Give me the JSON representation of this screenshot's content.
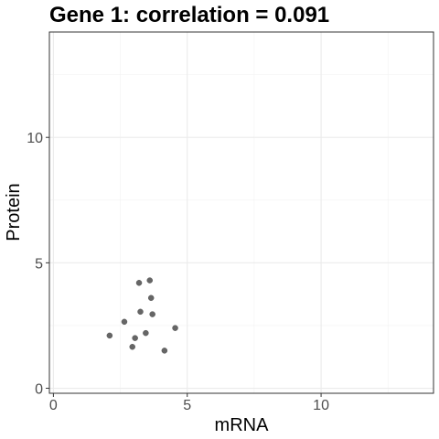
{
  "chart_data": {
    "type": "scatter",
    "title": "Gene 1: correlation = 0.091",
    "xlabel": "mRNA",
    "ylabel": "Protein",
    "xlim": [
      -0.15,
      14.2
    ],
    "ylim": [
      -0.2,
      14.2
    ],
    "x_ticks": [
      0,
      5,
      10
    ],
    "x_tick_labels": [
      "0",
      "5",
      "10"
    ],
    "y_ticks": [
      0,
      5,
      10
    ],
    "y_tick_labels": [
      "0",
      "5",
      "10"
    ],
    "x_minor_ticks": [
      2.5,
      7.5,
      12.5
    ],
    "y_minor_ticks": [
      2.5,
      7.5,
      12.5
    ],
    "grid": true,
    "legend": "none",
    "point_color": "#666666",
    "points": [
      {
        "x": 2.1,
        "y": 2.1
      },
      {
        "x": 2.65,
        "y": 2.65
      },
      {
        "x": 2.95,
        "y": 1.65
      },
      {
        "x": 3.05,
        "y": 2.0
      },
      {
        "x": 3.2,
        "y": 4.2
      },
      {
        "x": 3.25,
        "y": 3.05
      },
      {
        "x": 3.45,
        "y": 2.2
      },
      {
        "x": 3.6,
        "y": 4.3
      },
      {
        "x": 3.65,
        "y": 3.6
      },
      {
        "x": 3.7,
        "y": 2.95
      },
      {
        "x": 4.15,
        "y": 1.5
      },
      {
        "x": 4.55,
        "y": 2.4
      }
    ]
  }
}
